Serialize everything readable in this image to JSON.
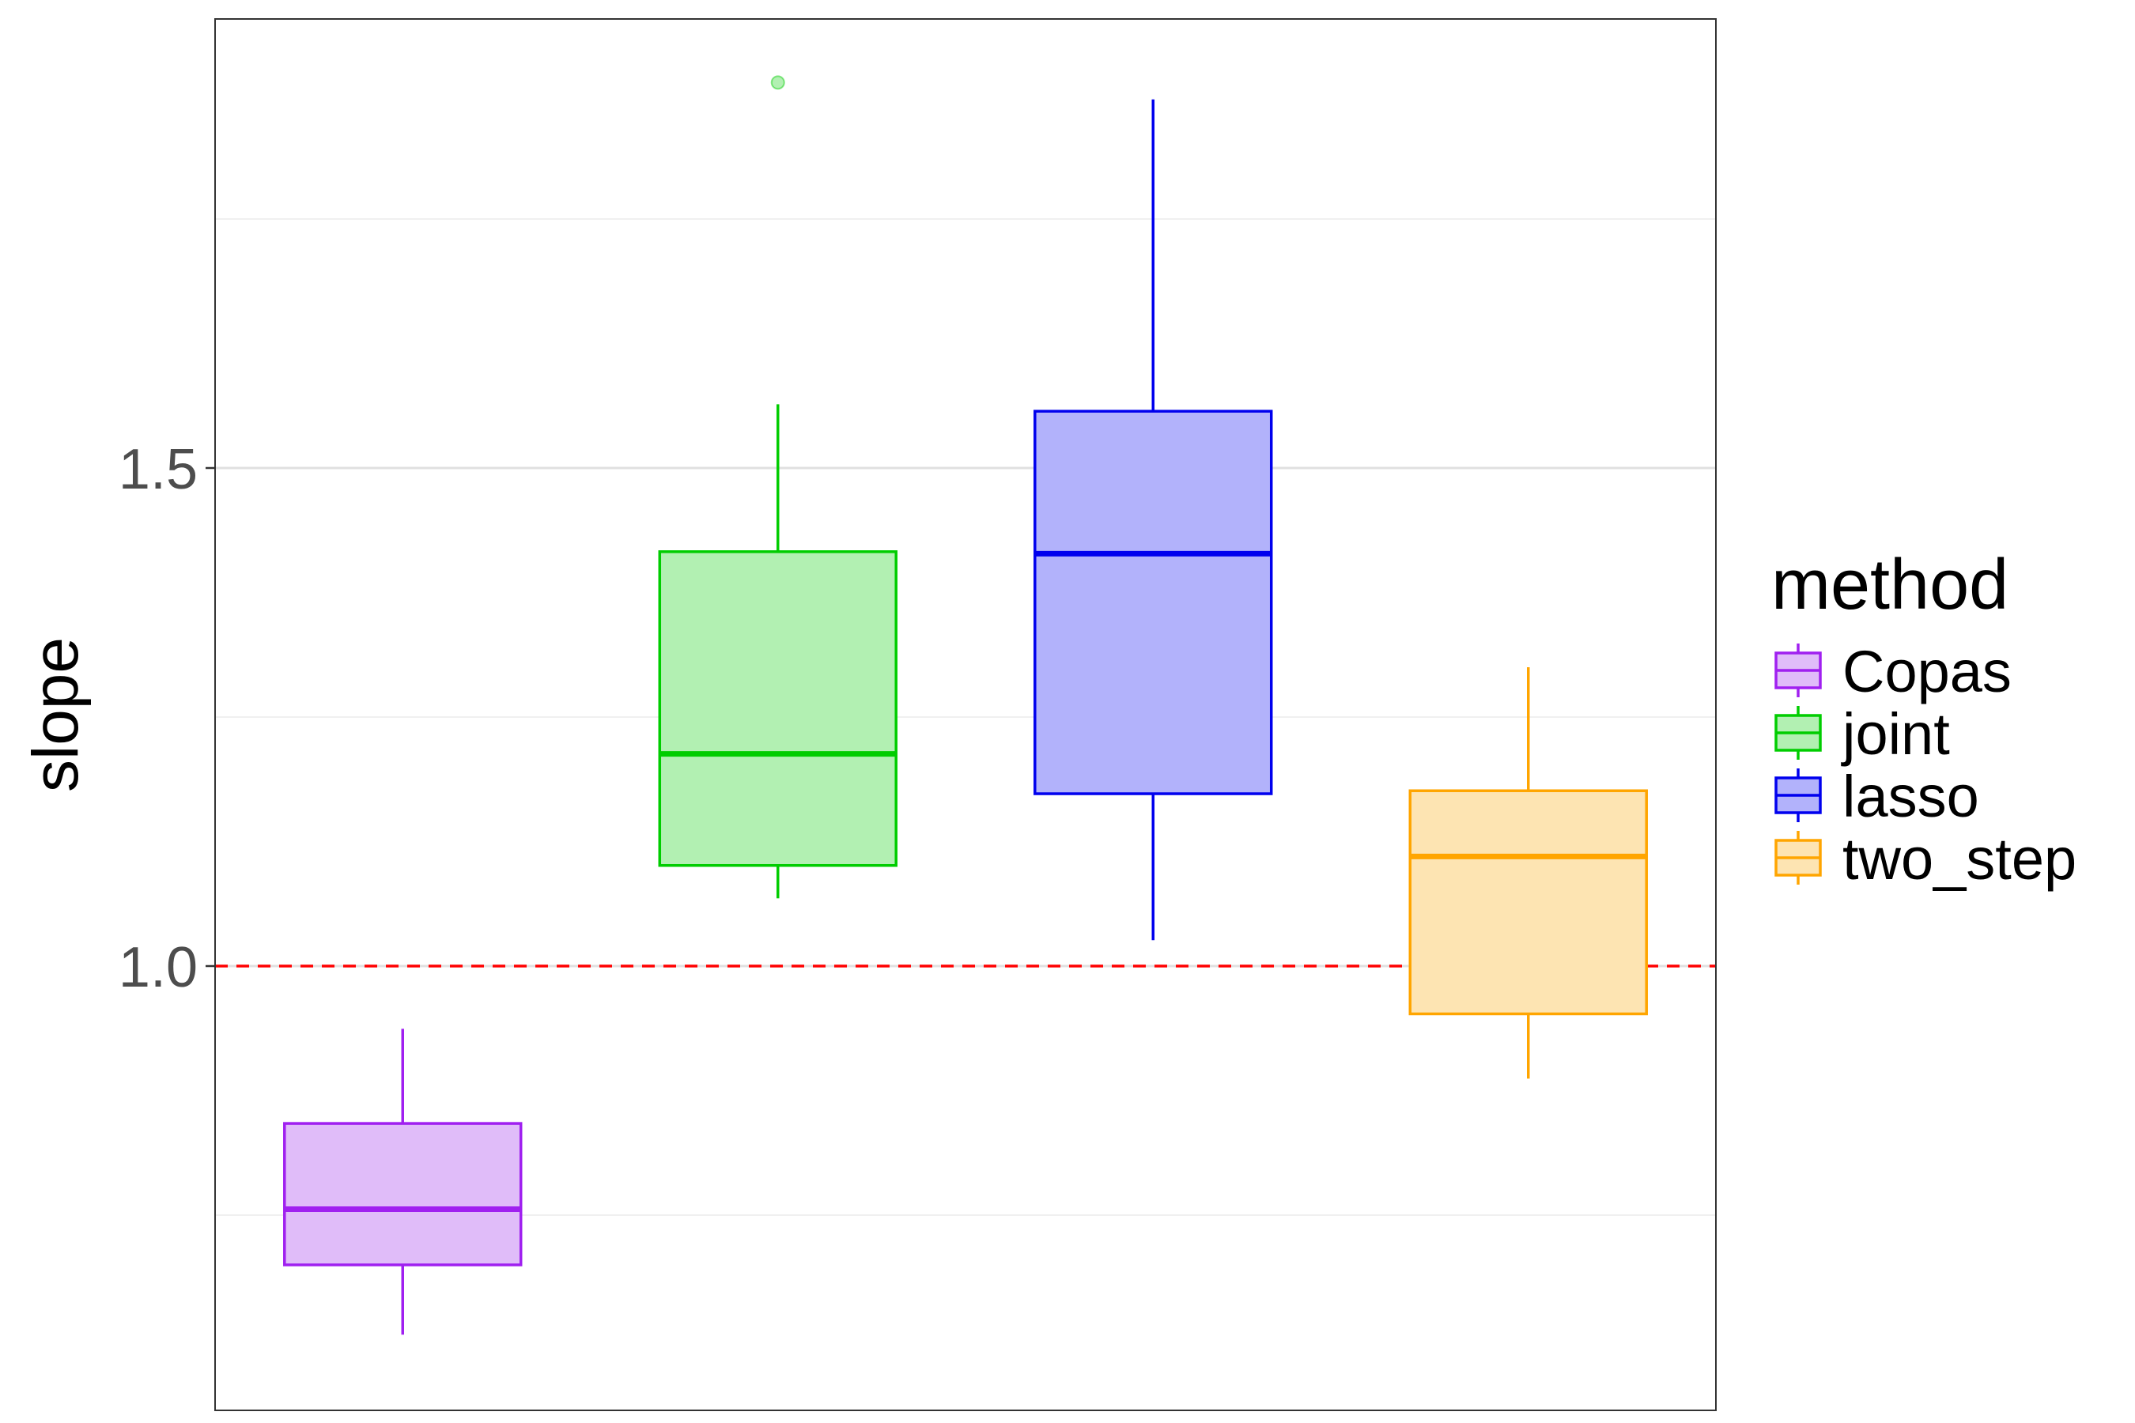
{
  "chart_data": {
    "type": "box",
    "ylabel": "slope",
    "xlabel": "",
    "ylim": [
      0.6,
      1.9
    ],
    "yticks": [
      1.0,
      1.5
    ],
    "yticks_labels": [
      "1.0",
      "1.5"
    ],
    "minor_gridlines": [
      0.75,
      1.25,
      1.75
    ],
    "grid": true,
    "reference_line": {
      "y": 1.0,
      "color": "#ff0000",
      "style": "dashed"
    },
    "legend": {
      "title": "method",
      "position": "right"
    },
    "series": [
      {
        "name": "Copas",
        "color": "#a020f0",
        "fill": "#e0bcf9",
        "whisker_low": 0.63,
        "q1": 0.7,
        "median": 0.756,
        "q3": 0.842,
        "whisker_high": 0.937,
        "outliers": []
      },
      {
        "name": "joint",
        "color": "#00cd00",
        "fill": "#b2f0b2",
        "whisker_low": 1.068,
        "q1": 1.101,
        "median": 1.213,
        "q3": 1.416,
        "whisker_high": 1.564,
        "outliers": [
          1.887
        ]
      },
      {
        "name": "lasso",
        "color": "#0000ee",
        "fill": "#b2b2fb",
        "whisker_low": 1.026,
        "q1": 1.173,
        "median": 1.414,
        "q3": 1.557,
        "whisker_high": 1.87,
        "outliers": []
      },
      {
        "name": "two_step",
        "color": "#ffa500",
        "fill": "#fde4b2",
        "whisker_low": 0.887,
        "q1": 0.952,
        "median": 1.11,
        "q3": 1.176,
        "whisker_high": 1.3,
        "outliers": []
      }
    ]
  }
}
